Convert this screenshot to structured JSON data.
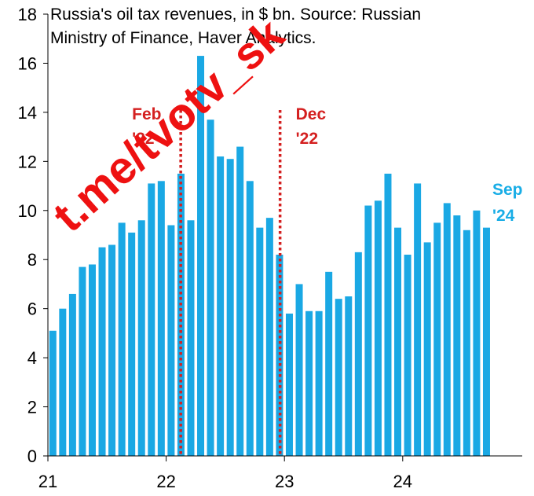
{
  "chart_data": {
    "type": "bar",
    "title": "Russia's oil tax revenues, in $ bn. Source: Russian Ministry of Finance, Haver Analytics.",
    "title_lines": [
      "Russia's oil tax revenues, in $ bn. Source: Russian",
      "Ministry of Finance, Haver Analytics."
    ],
    "xlabel": "",
    "ylabel": "",
    "ylim": [
      0,
      18
    ],
    "yticks": [
      0,
      2,
      4,
      6,
      8,
      10,
      12,
      14,
      16,
      18
    ],
    "xtick_labels": [
      "21",
      "22",
      "23",
      "24"
    ],
    "months_per_year": 12,
    "start": "Jan 2021",
    "end": "Sep 2024",
    "values": [
      5.1,
      6.0,
      6.6,
      7.7,
      7.8,
      8.5,
      8.6,
      9.5,
      9.1,
      9.6,
      11.1,
      11.2,
      9.4,
      11.5,
      9.6,
      16.3,
      13.7,
      12.2,
      12.1,
      12.6,
      11.2,
      9.3,
      9.7,
      8.2,
      5.8,
      7.0,
      5.9,
      5.9,
      7.5,
      6.4,
      6.5,
      8.3,
      10.2,
      10.4,
      11.5,
      9.3,
      8.2,
      11.1,
      8.7,
      9.5,
      10.3,
      9.8,
      9.2,
      10.0,
      9.3
    ],
    "series_color": "#1aa8e4",
    "reference_lines": [
      {
        "label_lines": [
          "Feb",
          "'22"
        ],
        "at_month_index": 13,
        "color": "#d42020"
      },
      {
        "label_lines": [
          "Dec",
          "'22"
        ],
        "at_month_index": 23,
        "color": "#d42020"
      }
    ],
    "end_label_lines": [
      "Sep",
      "'24"
    ]
  },
  "watermark": "t.me/tvotv_sk"
}
